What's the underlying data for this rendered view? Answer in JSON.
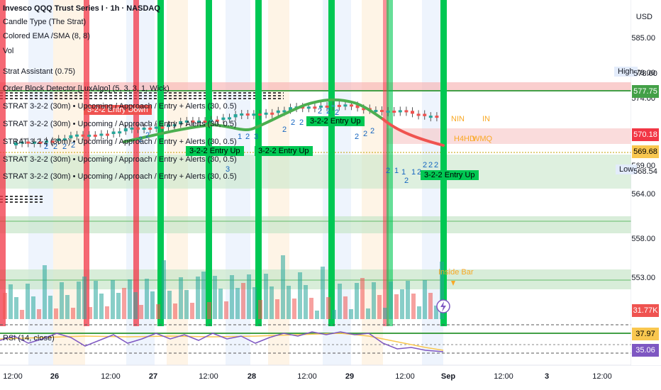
{
  "legend": {
    "symbol": "Invesco QQQ Trust Series I · 1h · NASDAQ",
    "candle_type": "Candle Type (The Strat)",
    "ema": "Colored EMA /SMA (8, 8)",
    "vol": "Vol",
    "strat_assistant": "Strat Assistant (0.75)",
    "order_block": "Order Block Detector [LuxAlgo] (5, 3, 3, 1, Wick)",
    "strat_1": "STRAT 3-2-2 (30m) • Upcoming / Approach / Entry + Alerts (30, 0.5)",
    "strat_2": "STRAT 3-2-2 (30m) • Upcoming / Approach / Entry + Alerts (30, 0.5)",
    "strat_3": "STRAT 3-2-2 (30m) • Upcoming / Approach / Entry + Alerts (30, 0.5)",
    "strat_4": "STRAT 3-2-2 (30m) • Upcoming / Approach / Entry + Alerts (30, 0.5)",
    "strat_5": "STRAT 3-2-2 (30m) • Upcoming / Approach / Entry + Alerts (30, 0.5)",
    "rsi": "RSI (14, close)"
  },
  "currency": "USD",
  "price_ticks": [
    "585.00",
    "578.00",
    "574.00",
    "569.00",
    "564.00",
    "558.00",
    "553.00"
  ],
  "tags": {
    "high_label": "High",
    "high_value": "578.00",
    "low_label": "Low",
    "low_value": "568.54",
    "p1": "577.75",
    "p2": "570.18",
    "p3": "569.68",
    "vol": "31.77K",
    "rsi1": "37.97",
    "rsi2": "35.06"
  },
  "annotations": {
    "entry_down": "3-2-2 Entry Down",
    "entry_up": "3-2-2 Entry Up",
    "inside_bar": "Inside Bar",
    "nin": "NIN",
    "in": "IN",
    "h4hd": "H4HD",
    "wmq": "WMQ"
  },
  "time_ticks": [
    "12:00",
    "26",
    "12:00",
    "27",
    "12:00",
    "28",
    "12:00",
    "29",
    "12:00",
    "Sep",
    "12:00",
    "3",
    "12:00"
  ],
  "colors": {
    "up": "#26a69a",
    "down": "#ef5350",
    "ema_up": "#4caf50",
    "green_vline": "#00c853",
    "red_vline": "#f23645",
    "rsi": "#7e57c2"
  }
}
